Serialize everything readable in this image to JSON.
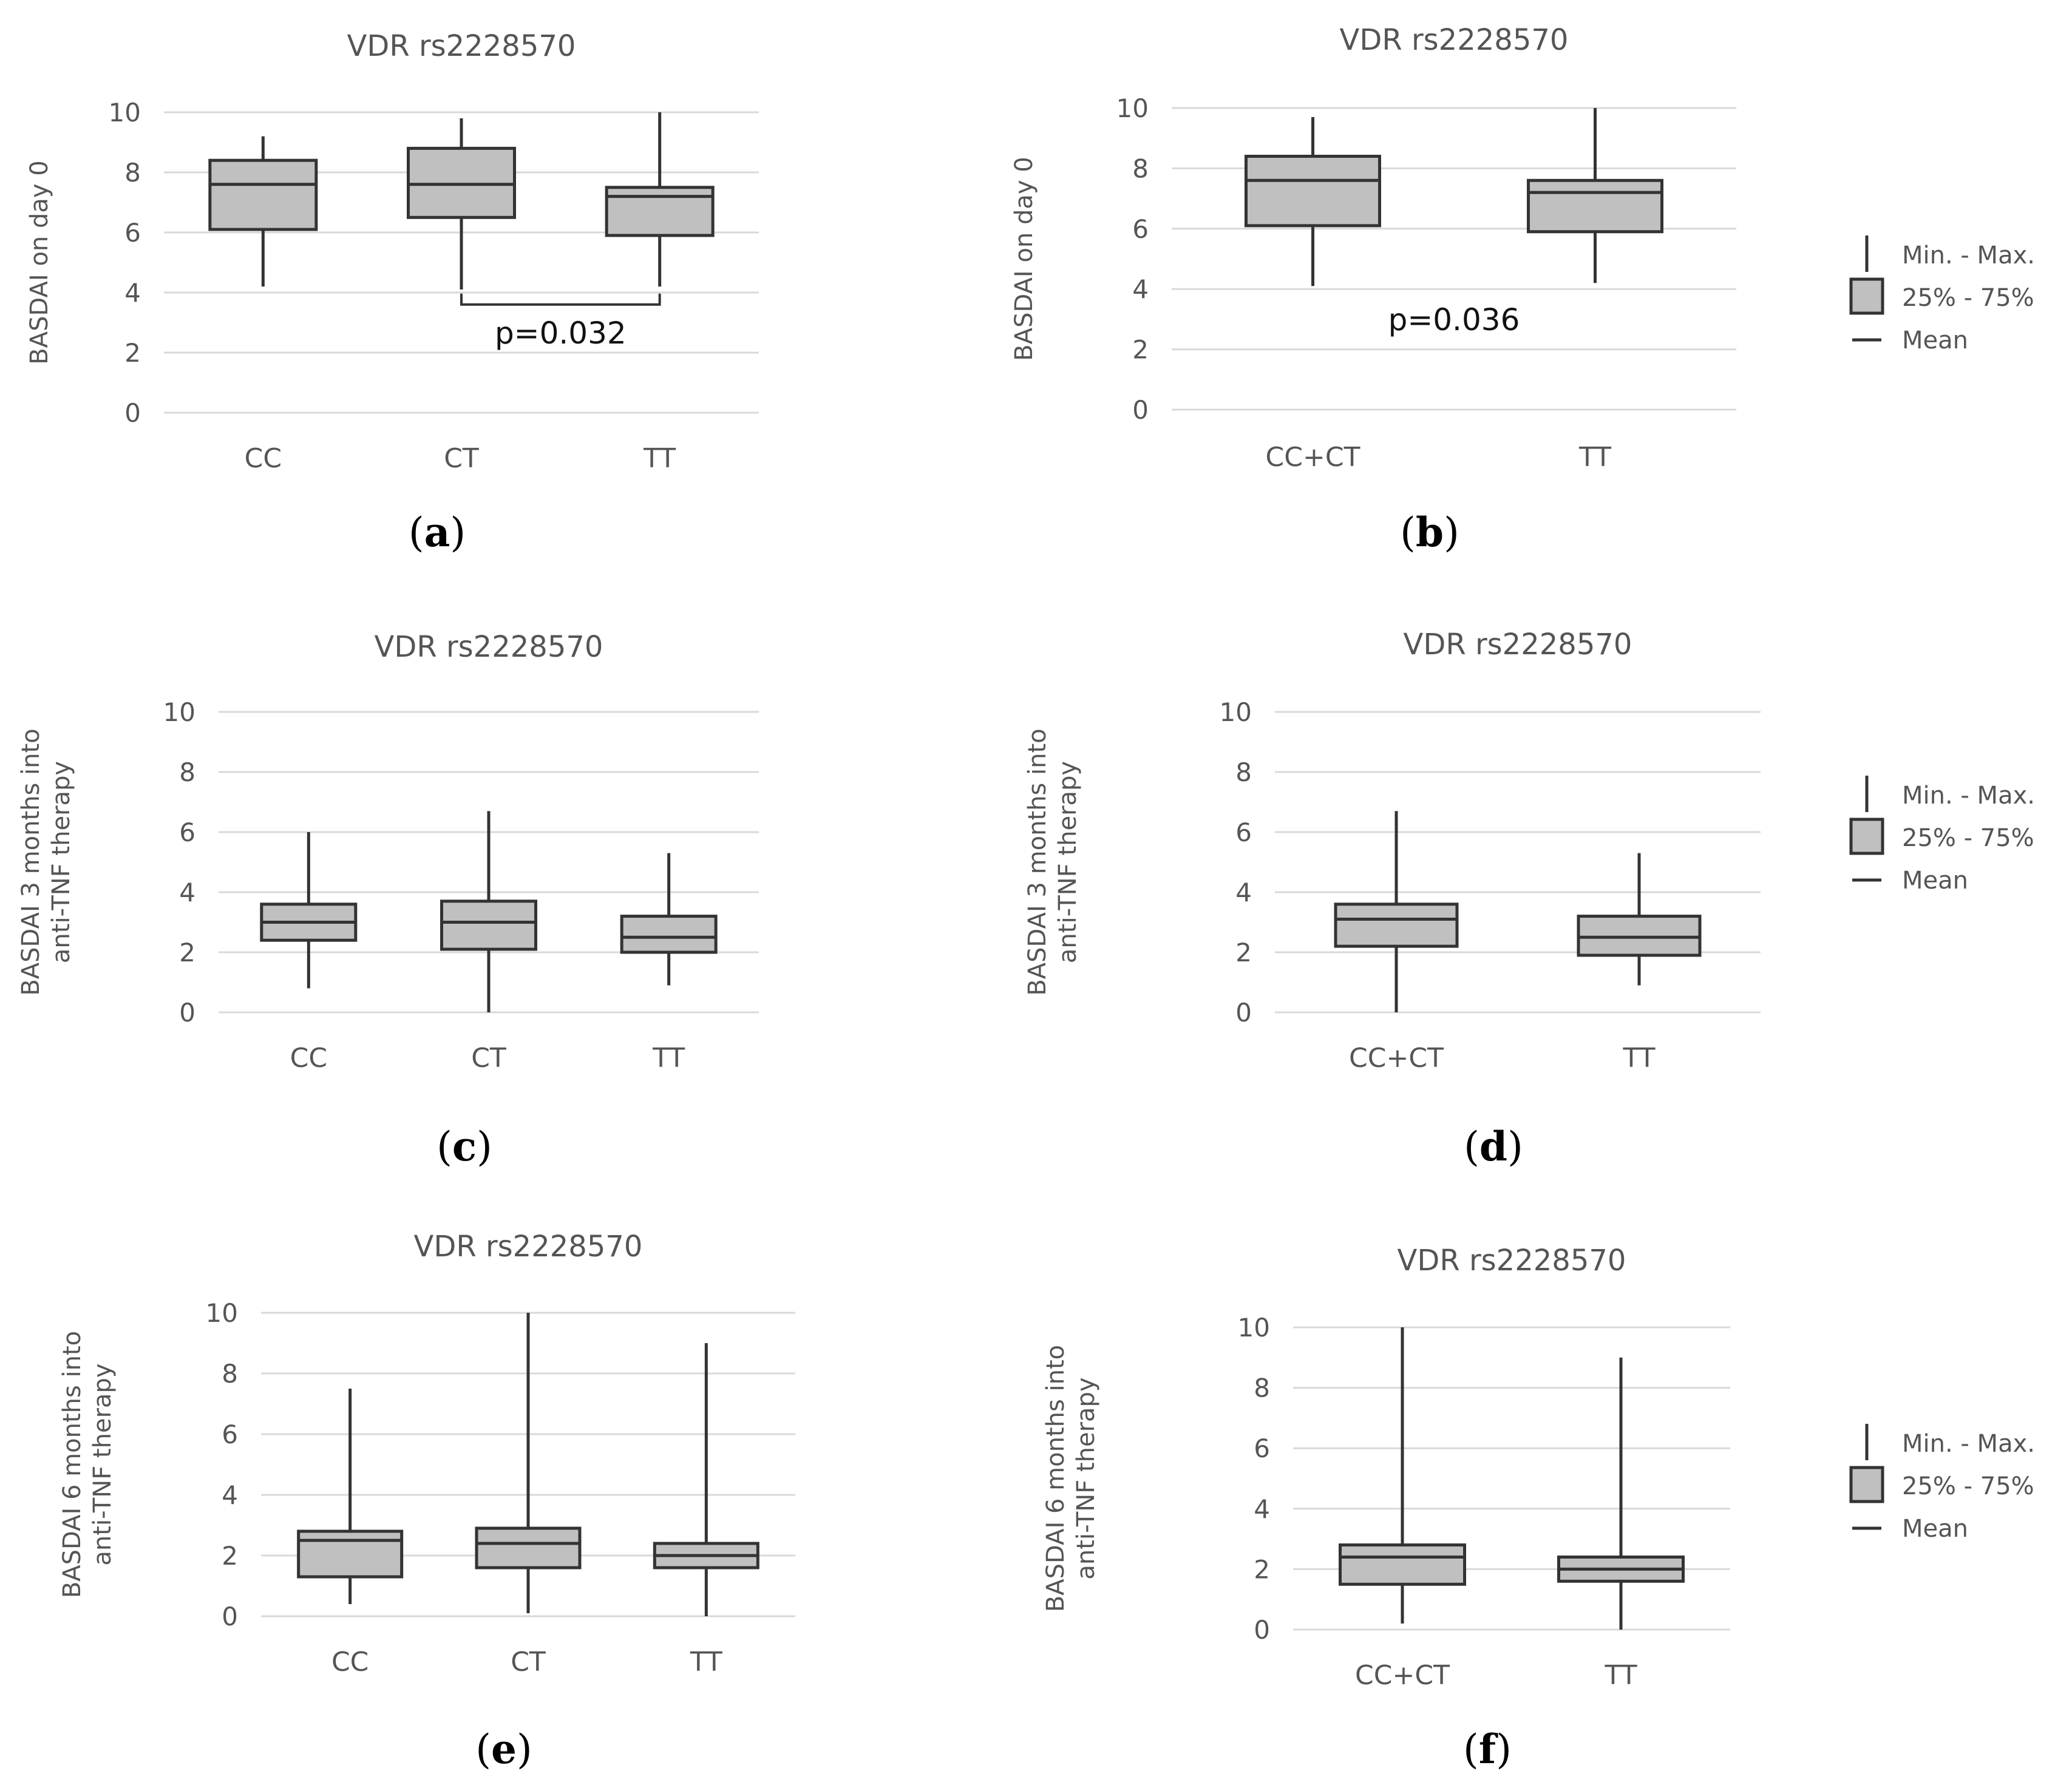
{
  "colors": {
    "box_fill": "#c0c0c0",
    "box_stroke": "#333333",
    "grid": "#d9d9d9",
    "text": "#555555"
  },
  "chart_data": [
    {
      "id": "a",
      "type": "box",
      "panel_label": "a",
      "title": "VDR rs2228570",
      "ylabel": "BASDAI on day 0",
      "xlabel": "",
      "ylim": [
        0,
        10
      ],
      "yticks": [
        0,
        2,
        4,
        6,
        8,
        10
      ],
      "categories": [
        "CC",
        "CT",
        "TT"
      ],
      "boxes": [
        {
          "min": 4.2,
          "q1": 6.1,
          "mean": 7.6,
          "q3": 8.4,
          "max": 9.2
        },
        {
          "min": 4.1,
          "q1": 6.5,
          "mean": 7.6,
          "q3": 8.8,
          "max": 9.8
        },
        {
          "min": 4.2,
          "q1": 5.9,
          "mean": 7.2,
          "q3": 7.5,
          "max": 10.0
        }
      ],
      "annotation": {
        "text": "p=0.032",
        "bracket": [
          1,
          2
        ],
        "at": 3.6
      }
    },
    {
      "id": "b",
      "type": "box",
      "panel_label": "b",
      "title": "VDR rs2228570",
      "ylabel": "BASDAI on day 0",
      "xlabel": "",
      "ylim": [
        0,
        10
      ],
      "yticks": [
        0,
        2,
        4,
        6,
        8,
        10
      ],
      "categories": [
        "CC+CT",
        "TT"
      ],
      "boxes": [
        {
          "min": 4.1,
          "q1": 6.1,
          "mean": 7.6,
          "q3": 8.4,
          "max": 9.7
        },
        {
          "min": 4.2,
          "q1": 5.9,
          "mean": 7.2,
          "q3": 7.6,
          "max": 10.0
        }
      ],
      "annotation": {
        "text": "p=0.036",
        "bracket": null,
        "at": 3.0
      }
    },
    {
      "id": "c",
      "type": "box",
      "panel_label": "c",
      "title": "VDR rs2228570",
      "ylabel": "BASDAI 3 months into anti-TNF therapy",
      "ylabel_lines": [
        "BASDAI 3 months into",
        "anti-TNF therapy"
      ],
      "xlabel": "",
      "ylim": [
        0,
        10
      ],
      "yticks": [
        0,
        2,
        4,
        6,
        8,
        10
      ],
      "categories": [
        "CC",
        "CT",
        "TT"
      ],
      "boxes": [
        {
          "min": 0.8,
          "q1": 2.4,
          "mean": 3.0,
          "q3": 3.6,
          "max": 6.0
        },
        {
          "min": 0.0,
          "q1": 2.1,
          "mean": 3.0,
          "q3": 3.7,
          "max": 6.7
        },
        {
          "min": 0.9,
          "q1": 2.0,
          "mean": 2.5,
          "q3": 3.2,
          "max": 5.3
        }
      ]
    },
    {
      "id": "d",
      "type": "box",
      "panel_label": "d",
      "title": "VDR rs2228570",
      "ylabel": "BASDAI 3 months into anti-TNF therapy",
      "ylabel_lines": [
        "BASDAI 3 months into",
        "anti-TNF therapy"
      ],
      "xlabel": "",
      "ylim": [
        0,
        10
      ],
      "yticks": [
        0,
        2,
        4,
        6,
        8,
        10
      ],
      "categories": [
        "CC+CT",
        "TT"
      ],
      "boxes": [
        {
          "min": 0.0,
          "q1": 2.2,
          "mean": 3.1,
          "q3": 3.6,
          "max": 6.7
        },
        {
          "min": 0.9,
          "q1": 1.9,
          "mean": 2.5,
          "q3": 3.2,
          "max": 5.3
        }
      ]
    },
    {
      "id": "e",
      "type": "box",
      "panel_label": "e",
      "title": "VDR rs2228570",
      "ylabel": "BASDAI 6 months into anti-TNF therapy",
      "ylabel_lines": [
        "BASDAI 6 months into",
        "anti-TNF therapy"
      ],
      "xlabel": "",
      "ylim": [
        0,
        10
      ],
      "yticks": [
        0,
        2,
        4,
        6,
        8,
        10
      ],
      "categories": [
        "CC",
        "CT",
        "TT"
      ],
      "boxes": [
        {
          "min": 0.4,
          "q1": 1.3,
          "mean": 2.5,
          "q3": 2.8,
          "max": 7.5
        },
        {
          "min": 0.1,
          "q1": 1.6,
          "mean": 2.4,
          "q3": 2.9,
          "max": 10.0
        },
        {
          "min": 0.0,
          "q1": 1.6,
          "mean": 2.0,
          "q3": 2.4,
          "max": 9.0
        }
      ]
    },
    {
      "id": "f",
      "type": "box",
      "panel_label": "f",
      "title": "VDR rs2228570",
      "ylabel": "BASDAI 6 months into anti-TNF therapy",
      "ylabel_lines": [
        "BASDAI 6 months into",
        "anti-TNF therapy"
      ],
      "xlabel": "",
      "ylim": [
        0,
        10
      ],
      "yticks": [
        0,
        2,
        4,
        6,
        8,
        10
      ],
      "categories": [
        "CC+CT",
        "TT"
      ],
      "boxes": [
        {
          "min": 0.2,
          "q1": 1.5,
          "mean": 2.4,
          "q3": 2.8,
          "max": 10.0
        },
        {
          "min": 0.0,
          "q1": 1.6,
          "mean": 2.0,
          "q3": 2.4,
          "max": 9.0
        }
      ]
    }
  ],
  "legend": {
    "position": "right",
    "items": [
      {
        "key": "minmax",
        "label": "Min. - Max."
      },
      {
        "key": "iqr",
        "label": "25% - 75%"
      },
      {
        "key": "mean",
        "label": "Mean"
      }
    ]
  }
}
